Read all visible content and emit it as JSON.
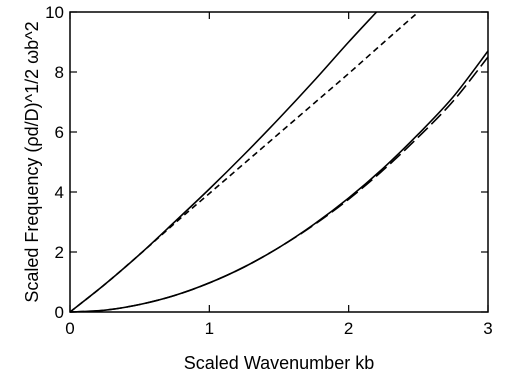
{
  "chart_data": {
    "type": "line",
    "xlabel": "Scaled Wavenumber kb",
    "ylabel": "Scaled Frequency (ρd/D)^1/2 ωb^2",
    "xlim": [
      0,
      3
    ],
    "ylim": [
      0,
      10
    ],
    "x_ticks": [
      0,
      1,
      2,
      3
    ],
    "y_ticks": [
      0,
      2,
      4,
      6,
      8,
      10
    ],
    "x_tick_labels": [
      "0",
      "1",
      "2",
      "3"
    ],
    "y_tick_labels": [
      "0",
      "2",
      "4",
      "6",
      "8",
      "10"
    ],
    "grid": false,
    "series": [
      {
        "style": "solid",
        "x": [
          0,
          0.25,
          0.5,
          0.75,
          1.0,
          1.25,
          1.5,
          1.75,
          2.0,
          2.2
        ],
        "y": [
          0,
          0.92,
          1.92,
          3.0,
          4.1,
          5.25,
          6.45,
          7.7,
          9.0,
          10.0
        ]
      },
      {
        "style": "dashed",
        "x": [
          0,
          0.25,
          0.5,
          0.75,
          1.0,
          1.25,
          1.5,
          1.75,
          2.0,
          2.25,
          2.5
        ],
        "y": [
          0,
          0.92,
          1.92,
          2.95,
          3.95,
          4.95,
          5.95,
          6.95,
          7.95,
          8.98,
          10.0
        ]
      },
      {
        "style": "solid",
        "x": [
          0,
          0.25,
          0.5,
          0.75,
          1.0,
          1.25,
          1.5,
          1.75,
          2.0,
          2.25,
          2.5,
          2.75,
          3.0
        ],
        "y": [
          0,
          0.06,
          0.25,
          0.55,
          0.97,
          1.5,
          2.15,
          2.92,
          3.8,
          4.8,
          5.93,
          7.17,
          8.7
        ]
      },
      {
        "style": "long-dashed",
        "x": [
          0,
          0.25,
          0.5,
          0.75,
          1.0,
          1.25,
          1.5,
          1.75,
          2.0,
          2.25,
          2.5,
          2.75,
          3.0
        ],
        "y": [
          0,
          0.06,
          0.25,
          0.55,
          0.97,
          1.5,
          2.15,
          2.9,
          3.76,
          4.74,
          5.83,
          7.03,
          8.5
        ]
      }
    ]
  }
}
